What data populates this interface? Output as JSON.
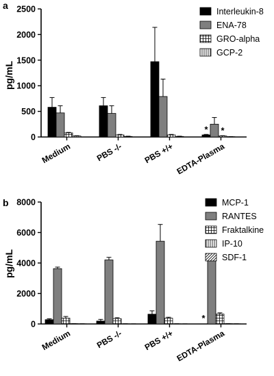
{
  "chart_data": [
    {
      "panel_label": "a",
      "type": "bar",
      "ylabel": "pg/mL",
      "ylim": [
        0,
        2500
      ],
      "yticks": [
        "0",
        "500",
        "1000",
        "1500",
        "2000",
        "2500"
      ],
      "categories": [
        "Medium",
        "PBS -/-",
        "PBS +/+",
        "EDTA-Plasma"
      ],
      "legend_position": "top-right",
      "series": [
        {
          "name": "Interleukin-8",
          "pattern": "solid-black",
          "values": [
            580,
            610,
            1470,
            40
          ],
          "errors": [
            190,
            160,
            670,
            10
          ]
        },
        {
          "name": "ENA-78",
          "pattern": "solid-gray",
          "values": [
            470,
            460,
            790,
            250
          ],
          "errors": [
            140,
            150,
            340,
            130
          ]
        },
        {
          "name": "GRO-alpha",
          "pattern": "grid",
          "values": [
            80,
            40,
            40,
            20
          ],
          "errors": [
            10,
            10,
            10,
            5
          ]
        },
        {
          "name": "GCP-2",
          "pattern": "vertical",
          "values": [
            20,
            10,
            10,
            5
          ],
          "errors": [
            5,
            5,
            5,
            3
          ]
        }
      ],
      "annotations": [
        {
          "text": "*",
          "category": "EDTA-Plasma",
          "series": "Interleukin-8"
        },
        {
          "text": "*",
          "category": "EDTA-Plasma",
          "series": "GRO-alpha"
        }
      ]
    },
    {
      "panel_label": "b",
      "type": "bar",
      "ylabel": "pg/mL",
      "ylim": [
        0,
        8000
      ],
      "yticks": [
        "0",
        "2000",
        "4000",
        "6000",
        "8000"
      ],
      "categories": [
        "Medium",
        "PBS -/-",
        "PBS +/+",
        "EDTA-Plasma"
      ],
      "legend_position": "top-right",
      "series": [
        {
          "name": "MCP-1",
          "pattern": "solid-black",
          "values": [
            280,
            190,
            640,
            0
          ],
          "errors": [
            60,
            110,
            220,
            0
          ]
        },
        {
          "name": "RANTES",
          "pattern": "solid-gray",
          "values": [
            3630,
            4200,
            5430,
            4180
          ],
          "errors": [
            100,
            170,
            1100,
            30
          ]
        },
        {
          "name": "Fraktalkine",
          "pattern": "grid",
          "values": [
            380,
            350,
            380,
            650
          ],
          "errors": [
            110,
            60,
            60,
            80
          ]
        },
        {
          "name": "IP-10",
          "pattern": "vertical",
          "values": [
            20,
            10,
            10,
            20
          ],
          "errors": [
            5,
            5,
            5,
            5
          ]
        },
        {
          "name": "SDF-1",
          "pattern": "diagonal",
          "values": [
            10,
            5,
            5,
            10
          ],
          "errors": [
            3,
            3,
            3,
            3
          ]
        }
      ],
      "annotations": [
        {
          "text": "*",
          "category": "EDTA-Plasma",
          "series": "MCP-1"
        }
      ]
    }
  ]
}
